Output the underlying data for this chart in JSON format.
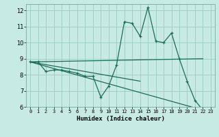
{
  "title": "",
  "xlabel": "Humidex (Indice chaleur)",
  "xlim": [
    -0.5,
    23.5
  ],
  "ylim": [
    6,
    12.4
  ],
  "yticks": [
    6,
    7,
    8,
    9,
    10,
    11,
    12
  ],
  "xticks": [
    0,
    1,
    2,
    3,
    4,
    5,
    6,
    7,
    8,
    9,
    10,
    11,
    12,
    13,
    14,
    15,
    16,
    17,
    18,
    19,
    20,
    21,
    22,
    23
  ],
  "bg_color": "#c8eae4",
  "grid_color": "#9ecfc7",
  "line_color": "#1a6b5a",
  "main_line": {
    "x": [
      0,
      1,
      2,
      3,
      4,
      5,
      6,
      7,
      8,
      9,
      10,
      11,
      12,
      13,
      14,
      15,
      16,
      17,
      18,
      19,
      20,
      21,
      22
    ],
    "y": [
      8.8,
      8.8,
      8.2,
      8.3,
      8.3,
      8.2,
      8.1,
      7.9,
      7.9,
      6.6,
      7.3,
      8.6,
      11.3,
      11.2,
      10.4,
      12.2,
      10.1,
      10.0,
      10.6,
      9.0,
      7.6,
      6.4,
      5.8
    ]
  },
  "trend_lines": [
    {
      "x": [
        0,
        22
      ],
      "y": [
        8.8,
        5.8
      ]
    },
    {
      "x": [
        0,
        22
      ],
      "y": [
        8.8,
        9.0
      ]
    },
    {
      "x": [
        0,
        14
      ],
      "y": [
        8.8,
        7.6
      ]
    }
  ]
}
